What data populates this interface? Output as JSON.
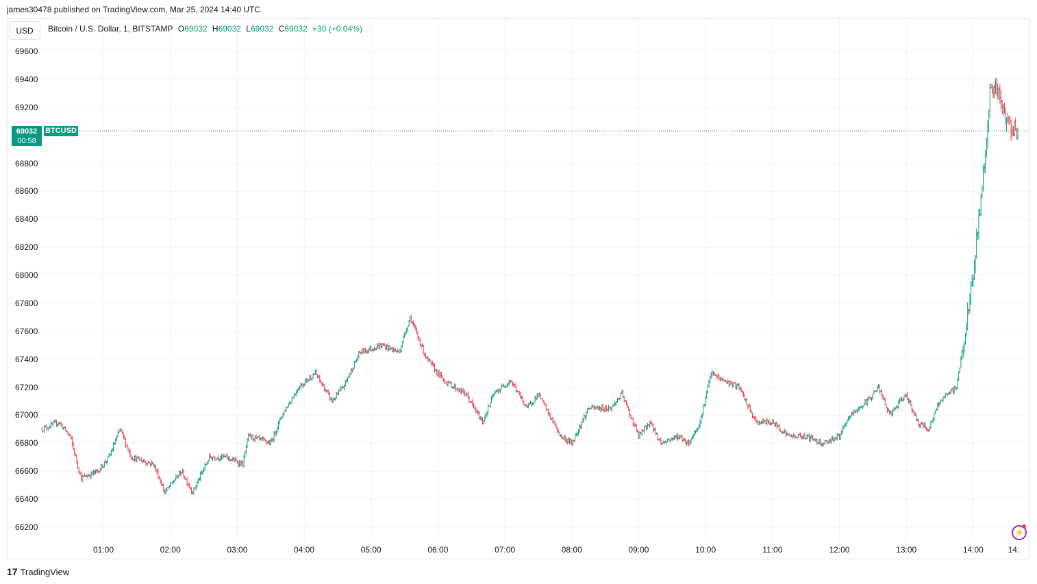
{
  "header": {
    "published": "james30478 published on TradingView.com, Mar 25, 2024 14:40 UTC"
  },
  "currency_button": "USD",
  "legend": {
    "symbol": "Bitcoin / U.S. Dollar, 1, BITSTAMP",
    "o_label": "O",
    "o": "69032",
    "h_label": "H",
    "h": "69032",
    "l_label": "L",
    "l": "69032",
    "c_label": "C",
    "c": "69032",
    "change": "+30 (+0.04%)"
  },
  "price_tag": {
    "price": "69032",
    "countdown": "00:58",
    "symbol": "BTCUSD"
  },
  "footer": {
    "brand": "TradingView"
  },
  "colors": {
    "up": "#089981",
    "down": "#f23645",
    "grid": "#f0f3fa"
  },
  "chart_data": {
    "type": "ohlc",
    "title": "Bitcoin / U.S. Dollar, 1, BITSTAMP",
    "ylim": [
      66100,
      69750
    ],
    "y_ticks": [
      66200,
      66400,
      66600,
      66800,
      67000,
      67200,
      67400,
      67600,
      67800,
      68000,
      68200,
      68400,
      68600,
      68800,
      69000,
      69200,
      69400,
      69600
    ],
    "x_ticks": [
      "01:00",
      "02:00",
      "03:00",
      "04:00",
      "05:00",
      "06:00",
      "07:00",
      "08:00",
      "09:00",
      "10:00",
      "11:00",
      "12:00",
      "13:00",
      "14:00",
      "14:"
    ],
    "x_tick_minutes": [
      60,
      120,
      180,
      240,
      300,
      360,
      420,
      480,
      540,
      600,
      660,
      720,
      780,
      840,
      880
    ],
    "last_price": 69032,
    "approx_path_minutes_price": [
      [
        5,
        66900
      ],
      [
        20,
        66950
      ],
      [
        30,
        66850
      ],
      [
        40,
        66550
      ],
      [
        55,
        66600
      ],
      [
        65,
        66700
      ],
      [
        75,
        66900
      ],
      [
        85,
        66700
      ],
      [
        105,
        66650
      ],
      [
        115,
        66450
      ],
      [
        130,
        66600
      ],
      [
        140,
        66450
      ],
      [
        155,
        66700
      ],
      [
        170,
        66700
      ],
      [
        185,
        66650
      ],
      [
        190,
        66850
      ],
      [
        210,
        66800
      ],
      [
        220,
        67000
      ],
      [
        235,
        67200
      ],
      [
        250,
        67300
      ],
      [
        265,
        67100
      ],
      [
        275,
        67200
      ],
      [
        290,
        67450
      ],
      [
        310,
        67500
      ],
      [
        325,
        67450
      ],
      [
        335,
        67700
      ],
      [
        350,
        67400
      ],
      [
        365,
        67250
      ],
      [
        385,
        67150
      ],
      [
        400,
        66950
      ],
      [
        410,
        67150
      ],
      [
        425,
        67250
      ],
      [
        440,
        67050
      ],
      [
        450,
        67150
      ],
      [
        470,
        66850
      ],
      [
        480,
        66800
      ],
      [
        495,
        67050
      ],
      [
        515,
        67050
      ],
      [
        525,
        67150
      ],
      [
        540,
        66850
      ],
      [
        550,
        66950
      ],
      [
        560,
        66800
      ],
      [
        575,
        66850
      ],
      [
        585,
        66800
      ],
      [
        595,
        66950
      ],
      [
        605,
        67300
      ],
      [
        615,
        67250
      ],
      [
        630,
        67200
      ],
      [
        645,
        66950
      ],
      [
        660,
        66950
      ],
      [
        675,
        66850
      ],
      [
        690,
        66850
      ],
      [
        705,
        66800
      ],
      [
        720,
        66850
      ],
      [
        730,
        67000
      ],
      [
        745,
        67100
      ],
      [
        755,
        67200
      ],
      [
        765,
        67000
      ],
      [
        780,
        67150
      ],
      [
        790,
        66950
      ],
      [
        800,
        66900
      ],
      [
        810,
        67100
      ],
      [
        825,
        67200
      ],
      [
        835,
        67700
      ],
      [
        840,
        68000
      ],
      [
        845,
        68400
      ],
      [
        850,
        68800
      ],
      [
        855,
        69300
      ],
      [
        860,
        69350
      ],
      [
        870,
        69100
      ],
      [
        880,
        69032
      ]
    ]
  }
}
